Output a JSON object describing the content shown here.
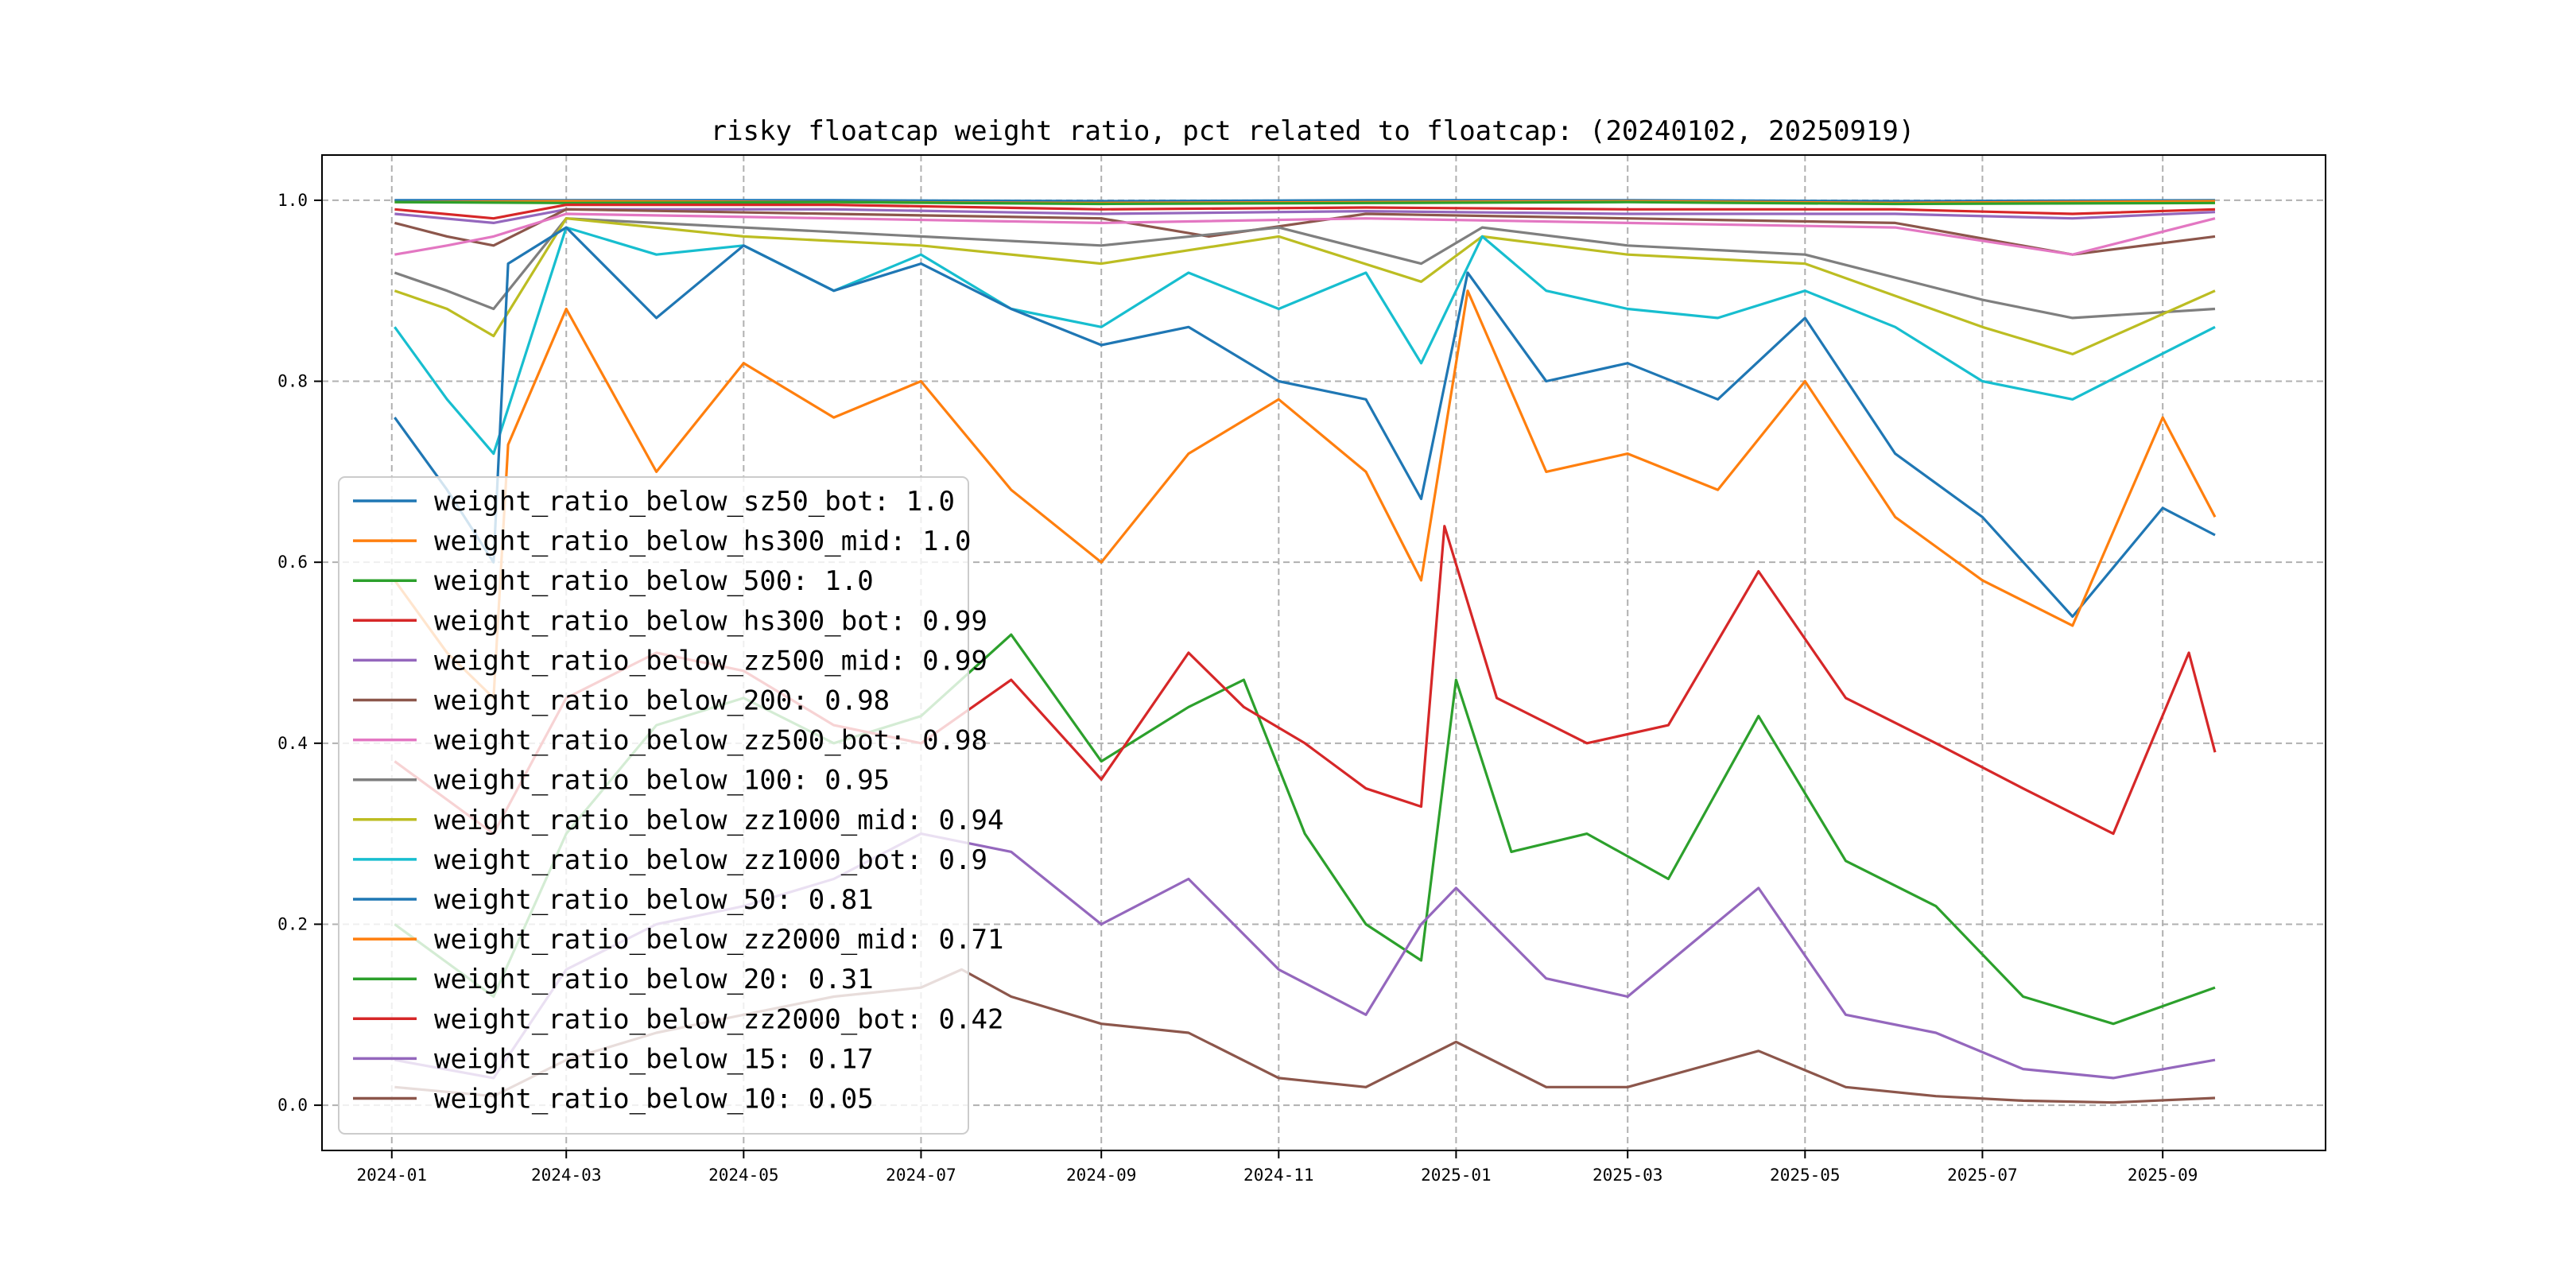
{
  "chart_data": {
    "type": "line",
    "title": "risky floatcap weight ratio, pct related to floatcap: (20240102, 20250919)",
    "xlabel": "",
    "ylabel": "",
    "x_range": [
      "2023-12-08",
      "2025-10-27"
    ],
    "ylim": [
      -0.05,
      1.05
    ],
    "grid": true,
    "legend_position": "lower-left",
    "x_ticks": [
      "2024-01",
      "2024-03",
      "2024-05",
      "2024-07",
      "2024-09",
      "2024-11",
      "2025-01",
      "2025-03",
      "2025-05",
      "2025-07",
      "2025-09"
    ],
    "y_ticks": [
      0.0,
      0.2,
      0.4,
      0.6,
      0.8,
      1.0
    ],
    "y_tick_labels": [
      "0.0",
      "0.2",
      "0.4",
      "0.6",
      "0.8",
      "1.0"
    ],
    "series": [
      {
        "name": "weight_ratio_below_sz50_bot: 1.0",
        "color": "#1f77b4",
        "dates": [
          "2024-01-02",
          "2024-03-01",
          "2024-06-01",
          "2024-09-01",
          "2024-12-01",
          "2025-03-01",
          "2025-06-01",
          "2025-09-19"
        ],
        "values": [
          1.0,
          1.0,
          1.0,
          0.999,
          1.0,
          1.0,
          0.999,
          1.0
        ]
      },
      {
        "name": "weight_ratio_below_hs300_mid: 1.0",
        "color": "#ff7f0e",
        "dates": [
          "2024-01-02",
          "2024-03-01",
          "2024-06-01",
          "2024-09-01",
          "2024-12-01",
          "2025-03-01",
          "2025-06-01",
          "2025-09-19"
        ],
        "values": [
          0.998,
          0.999,
          0.998,
          0.997,
          0.998,
          0.999,
          0.997,
          0.999
        ]
      },
      {
        "name": "weight_ratio_below_500: 1.0",
        "color": "#2ca02c",
        "dates": [
          "2024-01-02",
          "2024-03-01",
          "2024-06-01",
          "2024-09-01",
          "2024-12-01",
          "2025-03-01",
          "2025-06-01",
          "2025-09-19"
        ],
        "values": [
          0.998,
          0.997,
          0.998,
          0.996,
          0.997,
          0.998,
          0.996,
          0.997
        ]
      },
      {
        "name": "weight_ratio_below_hs300_bot: 0.99",
        "color": "#d62728",
        "dates": [
          "2024-01-02",
          "2024-02-05",
          "2024-03-01",
          "2024-06-01",
          "2024-09-01",
          "2024-12-01",
          "2025-03-01",
          "2025-06-01",
          "2025-08-01",
          "2025-09-19"
        ],
        "values": [
          0.99,
          0.98,
          0.995,
          0.995,
          0.99,
          0.992,
          0.99,
          0.99,
          0.985,
          0.99
        ]
      },
      {
        "name": "weight_ratio_below_zz500_mid: 0.99",
        "color": "#9467bd",
        "dates": [
          "2024-01-02",
          "2024-02-05",
          "2024-03-01",
          "2024-06-01",
          "2024-09-01",
          "2024-12-01",
          "2025-03-01",
          "2025-06-01",
          "2025-08-01",
          "2025-09-19"
        ],
        "values": [
          0.985,
          0.975,
          0.99,
          0.99,
          0.985,
          0.988,
          0.985,
          0.985,
          0.98,
          0.987
        ]
      },
      {
        "name": "weight_ratio_below_200: 0.98",
        "color": "#8c564b",
        "dates": [
          "2024-01-02",
          "2024-01-20",
          "2024-02-05",
          "2024-03-01",
          "2024-06-01",
          "2024-09-01",
          "2024-10-08",
          "2024-12-01",
          "2025-03-01",
          "2025-06-01",
          "2025-08-01",
          "2025-09-19"
        ],
        "values": [
          0.975,
          0.96,
          0.95,
          0.99,
          0.985,
          0.98,
          0.96,
          0.985,
          0.98,
          0.975,
          0.94,
          0.96
        ]
      },
      {
        "name": "weight_ratio_below_zz500_bot: 0.98",
        "color": "#e377c2",
        "dates": [
          "2024-01-02",
          "2024-01-20",
          "2024-02-05",
          "2024-03-01",
          "2024-06-01",
          "2024-09-01",
          "2024-12-01",
          "2025-03-01",
          "2025-06-01",
          "2025-08-01",
          "2025-09-19"
        ],
        "values": [
          0.94,
          0.95,
          0.96,
          0.985,
          0.98,
          0.975,
          0.98,
          0.975,
          0.97,
          0.94,
          0.98
        ]
      },
      {
        "name": "weight_ratio_below_100: 0.95",
        "color": "#7f7f7f",
        "dates": [
          "2024-01-02",
          "2024-01-20",
          "2024-02-05",
          "2024-03-01",
          "2024-05-01",
          "2024-07-01",
          "2024-09-01",
          "2024-11-01",
          "2024-12-20",
          "2025-01-10",
          "2025-03-01",
          "2025-05-01",
          "2025-07-01",
          "2025-08-01",
          "2025-09-19"
        ],
        "values": [
          0.92,
          0.9,
          0.88,
          0.98,
          0.97,
          0.96,
          0.95,
          0.97,
          0.93,
          0.97,
          0.95,
          0.94,
          0.89,
          0.87,
          0.88
        ]
      },
      {
        "name": "weight_ratio_below_zz1000_mid: 0.94",
        "color": "#bcbd22",
        "dates": [
          "2024-01-02",
          "2024-01-20",
          "2024-02-05",
          "2024-03-01",
          "2024-05-01",
          "2024-07-01",
          "2024-09-01",
          "2024-11-01",
          "2024-12-20",
          "2025-01-10",
          "2025-03-01",
          "2025-05-01",
          "2025-07-01",
          "2025-08-01",
          "2025-09-19"
        ],
        "values": [
          0.9,
          0.88,
          0.85,
          0.98,
          0.96,
          0.95,
          0.93,
          0.96,
          0.91,
          0.96,
          0.94,
          0.93,
          0.86,
          0.83,
          0.9
        ]
      },
      {
        "name": "weight_ratio_below_zz1000_bot: 0.9",
        "color": "#17becf",
        "dates": [
          "2024-01-02",
          "2024-01-20",
          "2024-02-05",
          "2024-03-01",
          "2024-04-01",
          "2024-05-01",
          "2024-06-01",
          "2024-07-01",
          "2024-08-01",
          "2024-09-01",
          "2024-10-01",
          "2024-11-01",
          "2024-12-01",
          "2024-12-20",
          "2025-01-10",
          "2025-02-01",
          "2025-03-01",
          "2025-04-01",
          "2025-05-01",
          "2025-06-01",
          "2025-07-01",
          "2025-08-01",
          "2025-09-19"
        ],
        "values": [
          0.86,
          0.78,
          0.72,
          0.97,
          0.94,
          0.95,
          0.9,
          0.94,
          0.88,
          0.86,
          0.92,
          0.88,
          0.92,
          0.82,
          0.96,
          0.9,
          0.88,
          0.87,
          0.9,
          0.86,
          0.8,
          0.78,
          0.86
        ]
      },
      {
        "name": "weight_ratio_below_50: 0.81",
        "color": "#1f77b4",
        "dates": [
          "2024-01-02",
          "2024-01-20",
          "2024-02-05",
          "2024-02-10",
          "2024-03-01",
          "2024-04-01",
          "2024-05-01",
          "2024-06-01",
          "2024-07-01",
          "2024-08-01",
          "2024-09-01",
          "2024-10-01",
          "2024-11-01",
          "2024-12-01",
          "2024-12-20",
          "2025-01-05",
          "2025-02-01",
          "2025-03-01",
          "2025-04-01",
          "2025-05-01",
          "2025-06-01",
          "2025-07-01",
          "2025-08-01",
          "2025-09-01",
          "2025-09-19"
        ],
        "values": [
          0.76,
          0.68,
          0.6,
          0.93,
          0.97,
          0.87,
          0.95,
          0.9,
          0.93,
          0.88,
          0.84,
          0.86,
          0.8,
          0.78,
          0.67,
          0.92,
          0.8,
          0.82,
          0.78,
          0.87,
          0.72,
          0.65,
          0.54,
          0.66,
          0.63
        ]
      },
      {
        "name": "weight_ratio_below_zz2000_mid: 0.71",
        "color": "#ff7f0e",
        "dates": [
          "2024-01-02",
          "2024-01-20",
          "2024-02-05",
          "2024-02-10",
          "2024-03-01",
          "2024-04-01",
          "2024-05-01",
          "2024-06-01",
          "2024-07-01",
          "2024-08-01",
          "2024-09-01",
          "2024-10-01",
          "2024-11-01",
          "2024-12-01",
          "2024-12-20",
          "2025-01-05",
          "2025-02-01",
          "2025-03-01",
          "2025-04-01",
          "2025-05-01",
          "2025-06-01",
          "2025-07-01",
          "2025-08-01",
          "2025-09-01",
          "2025-09-19"
        ],
        "values": [
          0.58,
          0.5,
          0.45,
          0.73,
          0.88,
          0.7,
          0.82,
          0.76,
          0.8,
          0.68,
          0.6,
          0.72,
          0.78,
          0.7,
          0.58,
          0.9,
          0.7,
          0.72,
          0.68,
          0.8,
          0.65,
          0.58,
          0.53,
          0.76,
          0.65
        ]
      },
      {
        "name": "weight_ratio_below_20: 0.31",
        "color": "#2ca02c",
        "dates": [
          "2024-01-02",
          "2024-02-05",
          "2024-03-01",
          "2024-04-01",
          "2024-05-01",
          "2024-06-01",
          "2024-07-01",
          "2024-08-01",
          "2024-09-01",
          "2024-10-01",
          "2024-10-20",
          "2024-11-10",
          "2024-12-01",
          "2024-12-20",
          "2025-01-01",
          "2025-01-20",
          "2025-02-15",
          "2025-03-15",
          "2025-04-15",
          "2025-05-15",
          "2025-06-15",
          "2025-07-15",
          "2025-08-15",
          "2025-09-19"
        ],
        "values": [
          0.2,
          0.12,
          0.3,
          0.42,
          0.45,
          0.4,
          0.43,
          0.52,
          0.38,
          0.44,
          0.47,
          0.3,
          0.2,
          0.16,
          0.47,
          0.28,
          0.3,
          0.25,
          0.43,
          0.27,
          0.22,
          0.12,
          0.09,
          0.13
        ]
      },
      {
        "name": "weight_ratio_below_zz2000_bot: 0.42",
        "color": "#d62728",
        "dates": [
          "2024-01-02",
          "2024-02-05",
          "2024-03-01",
          "2024-04-01",
          "2024-05-01",
          "2024-06-01",
          "2024-07-01",
          "2024-08-01",
          "2024-09-01",
          "2024-10-01",
          "2024-10-20",
          "2024-11-10",
          "2024-12-01",
          "2024-12-20",
          "2024-12-28",
          "2025-01-15",
          "2025-02-15",
          "2025-03-15",
          "2025-04-15",
          "2025-05-15",
          "2025-06-15",
          "2025-07-15",
          "2025-08-15",
          "2025-09-10",
          "2025-09-19"
        ],
        "values": [
          0.38,
          0.3,
          0.45,
          0.5,
          0.48,
          0.42,
          0.4,
          0.47,
          0.36,
          0.5,
          0.44,
          0.4,
          0.35,
          0.33,
          0.64,
          0.45,
          0.4,
          0.42,
          0.59,
          0.45,
          0.4,
          0.35,
          0.3,
          0.5,
          0.39
        ]
      },
      {
        "name": "weight_ratio_below_15: 0.17",
        "color": "#9467bd",
        "dates": [
          "2024-01-02",
          "2024-02-05",
          "2024-03-01",
          "2024-04-01",
          "2024-05-01",
          "2024-06-01",
          "2024-07-01",
          "2024-08-01",
          "2024-09-01",
          "2024-10-01",
          "2024-11-01",
          "2024-12-01",
          "2024-12-20",
          "2025-01-01",
          "2025-02-01",
          "2025-03-01",
          "2025-04-15",
          "2025-05-15",
          "2025-06-15",
          "2025-07-15",
          "2025-08-15",
          "2025-09-19"
        ],
        "values": [
          0.05,
          0.03,
          0.15,
          0.2,
          0.22,
          0.25,
          0.3,
          0.28,
          0.2,
          0.25,
          0.15,
          0.1,
          0.2,
          0.24,
          0.14,
          0.12,
          0.24,
          0.1,
          0.08,
          0.04,
          0.03,
          0.05
        ]
      },
      {
        "name": "weight_ratio_below_10: 0.05",
        "color": "#8c564b",
        "dates": [
          "2024-01-02",
          "2024-02-05",
          "2024-03-01",
          "2024-04-01",
          "2024-05-01",
          "2024-06-01",
          "2024-07-01",
          "2024-07-15",
          "2024-08-01",
          "2024-09-01",
          "2024-10-01",
          "2024-11-01",
          "2024-12-01",
          "2025-01-01",
          "2025-02-01",
          "2025-03-01",
          "2025-04-15",
          "2025-05-15",
          "2025-06-15",
          "2025-07-15",
          "2025-08-15",
          "2025-09-19"
        ],
        "values": [
          0.02,
          0.01,
          0.05,
          0.08,
          0.1,
          0.12,
          0.13,
          0.15,
          0.12,
          0.09,
          0.08,
          0.03,
          0.02,
          0.07,
          0.02,
          0.02,
          0.06,
          0.02,
          0.01,
          0.005,
          0.003,
          0.008
        ]
      }
    ]
  }
}
